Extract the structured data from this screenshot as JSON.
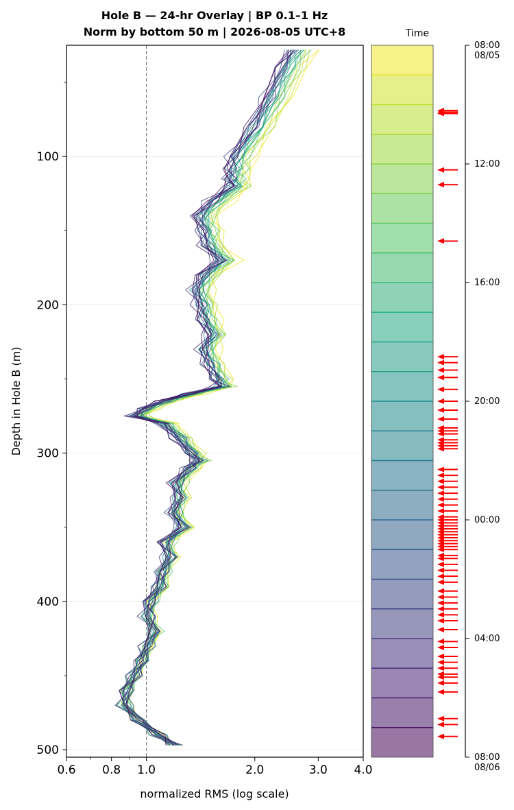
{
  "chart_data": {
    "type": "line",
    "title_lines": [
      "Hole B — 24-hr Overlay  |  BP 0.1–1 Hz",
      "Norm by bottom 50 m  |  2026-08-05 UTC+8"
    ],
    "xlabel": "normalized RMS  (log scale)",
    "ylabel": "Depth in Hole B (m)",
    "xscale": "log",
    "xlim": [
      0.6,
      4.0
    ],
    "ylim": [
      505,
      25
    ],
    "x_ticks": [
      0.6,
      0.8,
      1.0,
      2.0,
      3.0,
      4.0
    ],
    "x_tick_labels": [
      "0.6",
      "0.8",
      "1.0",
      "2.0",
      "3.0",
      "4.0"
    ],
    "y_ticks": [
      100,
      200,
      300,
      400,
      500
    ],
    "y_tick_labels": [
      "100",
      "200",
      "300",
      "400",
      "500"
    ],
    "reference_line_x": 1.0,
    "grid": "horizontal",
    "colormap": "viridis",
    "n_time_bins": 24,
    "depth_profile": {
      "depth_m": [
        28,
        40,
        60,
        80,
        100,
        108,
        115,
        120,
        130,
        140,
        150,
        160,
        170,
        180,
        190,
        200,
        210,
        220,
        230,
        240,
        250,
        255,
        260,
        265,
        270,
        275,
        280,
        290,
        300,
        305,
        310,
        320,
        330,
        340,
        350,
        360,
        370,
        380,
        390,
        400,
        410,
        420,
        430,
        440,
        450,
        460,
        470,
        480,
        490,
        497
      ],
      "median_rms": [
        2.5,
        2.35,
        2.15,
        1.95,
        1.72,
        1.7,
        1.68,
        1.7,
        1.5,
        1.38,
        1.42,
        1.45,
        1.58,
        1.42,
        1.35,
        1.4,
        1.42,
        1.5,
        1.42,
        1.48,
        1.55,
        1.6,
        1.3,
        1.1,
        0.98,
        0.92,
        1.1,
        1.22,
        1.32,
        1.38,
        1.3,
        1.2,
        1.22,
        1.18,
        1.25,
        1.12,
        1.15,
        1.1,
        1.08,
        1.02,
        1.0,
        1.05,
        1.0,
        0.97,
        0.92,
        0.88,
        0.87,
        0.95,
        1.08,
        1.2
      ]
    },
    "colorbar": {
      "label": "Time",
      "tick_labels": [
        {
          "hour": 0,
          "lines": [
            "08:00",
            "08/05"
          ]
        },
        {
          "hour": 4,
          "lines": [
            "12:00"
          ]
        },
        {
          "hour": 8,
          "lines": [
            "16:00"
          ]
        },
        {
          "hour": 12,
          "lines": [
            "20:00"
          ]
        },
        {
          "hour": 16,
          "lines": [
            "00:00"
          ]
        },
        {
          "hour": 20,
          "lines": [
            "04:00"
          ]
        },
        {
          "hour": 24,
          "lines": [
            "08:00",
            "08/06"
          ]
        }
      ]
    },
    "event_marker_color": "#ff0000",
    "event_hours": [
      2.2,
      2.25,
      2.3,
      4.2,
      4.7,
      6.6,
      10.5,
      10.7,
      10.95,
      11.2,
      11.6,
      12.0,
      12.3,
      12.6,
      12.9,
      13.0,
      13.1,
      13.3,
      13.4,
      13.5,
      13.6,
      14.3,
      14.5,
      14.7,
      14.9,
      15.1,
      15.3,
      15.5,
      15.7,
      15.9,
      16.0,
      16.1,
      16.2,
      16.3,
      16.4,
      16.5,
      16.6,
      16.7,
      16.8,
      16.9,
      17.0,
      17.2,
      17.3,
      17.5,
      17.7,
      17.9,
      18.1,
      18.4,
      18.6,
      18.8,
      19.0,
      19.2,
      19.4,
      19.7,
      20.1,
      20.3,
      20.6,
      20.8,
      21.0,
      21.2,
      21.3,
      21.5,
      21.8,
      22.7,
      22.9,
      23.3
    ]
  }
}
